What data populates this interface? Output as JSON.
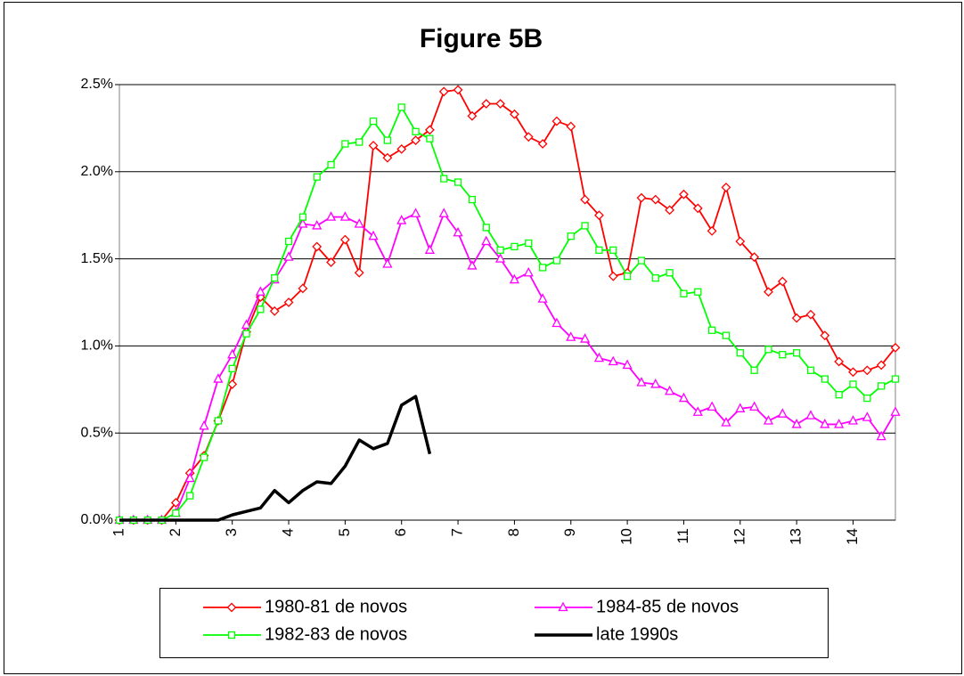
{
  "chart_data": {
    "type": "line",
    "title": "Figure 5B",
    "x": [
      1,
      1.25,
      1.5,
      1.75,
      2,
      2.25,
      2.5,
      2.75,
      3,
      3.25,
      3.5,
      3.75,
      4,
      4.25,
      4.5,
      4.75,
      5,
      5.25,
      5.5,
      5.75,
      6,
      6.25,
      6.5,
      6.75,
      7,
      7.25,
      7.5,
      7.75,
      8,
      8.25,
      8.5,
      8.75,
      9,
      9.25,
      9.5,
      9.75,
      10,
      10.25,
      10.5,
      10.75,
      11,
      11.25,
      11.5,
      11.75,
      12,
      12.25,
      12.5,
      12.75,
      13,
      13.25,
      13.5,
      13.75,
      14,
      14.25,
      14.5,
      14.75
    ],
    "xlim": [
      1,
      14.75
    ],
    "xticks": [
      1,
      2,
      3,
      4,
      5,
      6,
      7,
      8,
      9,
      10,
      11,
      12,
      13,
      14
    ],
    "ylim": [
      0,
      2.5
    ],
    "yticks": [
      {
        "value": 0,
        "label": "0.0%"
      },
      {
        "value": 0.5,
        "label": "0.5%"
      },
      {
        "value": 1,
        "label": "1.0%"
      },
      {
        "value": 1.5,
        "label": "1.5%"
      },
      {
        "value": 2,
        "label": "2.0%"
      },
      {
        "value": 2.5,
        "label": "2.5%"
      }
    ],
    "grid": true,
    "series": [
      {
        "name": "1980-81 de novos",
        "color": "#ff0000",
        "marker": "diamond",
        "values": [
          0,
          0,
          0,
          0,
          0.1,
          0.27,
          0.37,
          0.57,
          0.78,
          1.08,
          1.28,
          1.2,
          1.25,
          1.33,
          1.57,
          1.48,
          1.61,
          1.42,
          2.15,
          2.08,
          2.13,
          2.18,
          2.24,
          2.46,
          2.47,
          2.32,
          2.39,
          2.39,
          2.33,
          2.2,
          2.16,
          2.29,
          2.26,
          1.84,
          1.75,
          1.4,
          1.42,
          1.85,
          1.84,
          1.78,
          1.87,
          1.79,
          1.66,
          1.91,
          1.6,
          1.51,
          1.31,
          1.37,
          1.16,
          1.18,
          1.06,
          0.91,
          0.85,
          0.86,
          0.89,
          0.99
        ]
      },
      {
        "name": "1984-85 de novos",
        "color": "#ff00ff",
        "marker": "triangle",
        "values": [
          0,
          0,
          0,
          0,
          0.04,
          0.24,
          0.54,
          0.81,
          0.95,
          1.12,
          1.31,
          1.38,
          1.51,
          1.7,
          1.69,
          1.74,
          1.74,
          1.7,
          1.63,
          1.47,
          1.72,
          1.76,
          1.55,
          1.76,
          1.65,
          1.46,
          1.6,
          1.5,
          1.38,
          1.42,
          1.27,
          1.13,
          1.05,
          1.04,
          0.93,
          0.91,
          0.89,
          0.79,
          0.78,
          0.74,
          0.7,
          0.62,
          0.65,
          0.56,
          0.64,
          0.65,
          0.57,
          0.61,
          0.55,
          0.6,
          0.55,
          0.55,
          0.57,
          0.59,
          0.48,
          0.62
        ]
      },
      {
        "name": "1982-83 de novos",
        "color": "#00ff00",
        "marker": "square",
        "values": [
          0,
          0,
          0,
          0,
          0.04,
          0.14,
          0.36,
          0.57,
          0.87,
          1.07,
          1.21,
          1.39,
          1.6,
          1.74,
          1.97,
          2.04,
          2.16,
          2.17,
          2.29,
          2.18,
          2.37,
          2.23,
          2.19,
          1.96,
          1.94,
          1.84,
          1.68,
          1.55,
          1.57,
          1.59,
          1.45,
          1.49,
          1.63,
          1.69,
          1.55,
          1.55,
          1.4,
          1.49,
          1.39,
          1.42,
          1.3,
          1.31,
          1.09,
          1.06,
          0.96,
          0.86,
          0.98,
          0.95,
          0.96,
          0.86,
          0.81,
          0.72,
          0.78,
          0.7,
          0.77,
          0.81
        ]
      },
      {
        "name": "late 1990s",
        "color": "#000000",
        "marker": "none",
        "values": [
          0,
          0,
          0,
          0,
          0,
          0,
          0,
          0,
          0.03,
          0.05,
          0.07,
          0.17,
          0.1,
          0.17,
          0.22,
          0.21,
          0.31,
          0.46,
          0.41,
          0.44,
          0.66,
          0.71,
          0.38,
          null,
          null,
          null,
          null,
          null,
          null,
          null,
          null,
          null,
          null,
          null,
          null,
          null,
          null,
          null,
          null,
          null,
          null,
          null,
          null,
          null,
          null,
          null,
          null,
          null,
          null,
          null,
          null,
          null,
          null,
          null,
          null,
          null
        ]
      }
    ]
  }
}
